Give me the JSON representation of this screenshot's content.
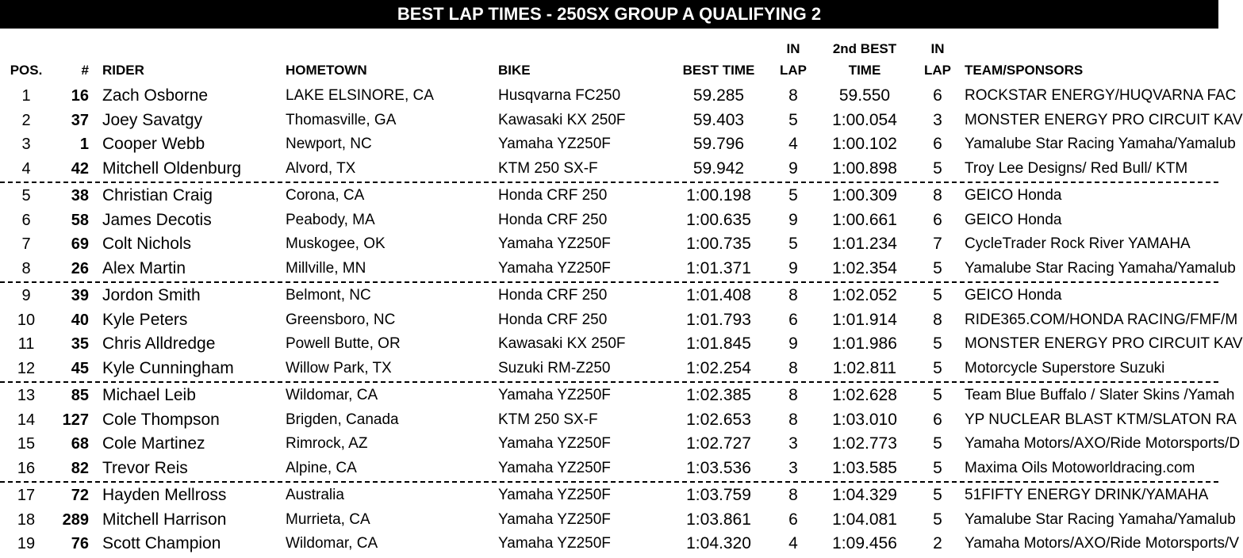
{
  "header": {
    "title": "BEST LAP TIMES - 250SX GROUP A QUALIFYING 2"
  },
  "table": {
    "columns": [
      "POS.",
      "#",
      "RIDER",
      "HOMETOWN",
      "BIKE",
      "BEST TIME",
      "IN LAP",
      "2nd BEST TIME",
      "IN LAP",
      "TEAM/SPONSORS"
    ],
    "rows": [
      [
        "1",
        "16",
        "Zach Osborne",
        "LAKE ELSINORE, CA",
        "Husqvarna FC250",
        "59.285",
        "8",
        "59.550",
        "6",
        "ROCKSTAR ENERGY/HUQVARNA FAC"
      ],
      [
        "2",
        "37",
        "Joey Savatgy",
        "Thomasville, GA",
        "Kawasaki KX 250F",
        "59.403",
        "5",
        "1:00.054",
        "3",
        "MONSTER ENERGY PRO CIRCUIT KAV"
      ],
      [
        "3",
        "1",
        "Cooper Webb",
        "Newport, NC",
        "Yamaha YZ250F",
        "59.796",
        "4",
        "1:00.102",
        "6",
        "Yamalube Star Racing Yamaha/Yamalub"
      ],
      [
        "4",
        "42",
        "Mitchell Oldenburg",
        "Alvord, TX",
        "KTM 250 SX-F",
        "59.942",
        "9",
        "1:00.898",
        "5",
        "Troy Lee Designs/ Red Bull/ KTM"
      ],
      [
        "5",
        "38",
        "Christian Craig",
        "Corona, CA",
        "Honda CRF 250",
        "1:00.198",
        "5",
        "1:00.309",
        "8",
        "GEICO Honda"
      ],
      [
        "6",
        "58",
        "James Decotis",
        "Peabody, MA",
        "Honda CRF 250",
        "1:00.635",
        "9",
        "1:00.661",
        "6",
        "GEICO Honda"
      ],
      [
        "7",
        "69",
        "Colt Nichols",
        "Muskogee, OK",
        "Yamaha YZ250F",
        "1:00.735",
        "5",
        "1:01.234",
        "7",
        "CycleTrader Rock River YAMAHA"
      ],
      [
        "8",
        "26",
        "Alex Martin",
        "Millville, MN",
        "Yamaha YZ250F",
        "1:01.371",
        "9",
        "1:02.354",
        "5",
        "Yamalube Star Racing Yamaha/Yamalub"
      ],
      [
        "9",
        "39",
        "Jordon Smith",
        "Belmont, NC",
        "Honda CRF 250",
        "1:01.408",
        "8",
        "1:02.052",
        "5",
        "GEICO Honda"
      ],
      [
        "10",
        "40",
        "Kyle Peters",
        "Greensboro, NC",
        "Honda CRF 250",
        "1:01.793",
        "6",
        "1:01.914",
        "8",
        "RIDE365.COM/HONDA RACING/FMF/M"
      ],
      [
        "11",
        "35",
        "Chris Alldredge",
        "Powell Butte, OR",
        "Kawasaki KX 250F",
        "1:01.845",
        "9",
        "1:01.986",
        "5",
        "MONSTER ENERGY PRO CIRCUIT KAV"
      ],
      [
        "12",
        "45",
        "Kyle Cunningham",
        "Willow Park, TX",
        "Suzuki RM-Z250",
        "1:02.254",
        "8",
        "1:02.811",
        "5",
        "Motorcycle Superstore Suzuki"
      ],
      [
        "13",
        "85",
        "Michael Leib",
        "Wildomar, CA",
        "Yamaha YZ250F",
        "1:02.385",
        "8",
        "1:02.628",
        "5",
        "Team Blue Buffalo / Slater Skins /Yamah"
      ],
      [
        "14",
        "127",
        "Cole Thompson",
        "Brigden, Canada",
        "KTM 250 SX-F",
        "1:02.653",
        "8",
        "1:03.010",
        "6",
        "YP NUCLEAR BLAST KTM/SLATON RA"
      ],
      [
        "15",
        "68",
        "Cole Martinez",
        "Rimrock, AZ",
        "Yamaha YZ250F",
        "1:02.727",
        "3",
        "1:02.773",
        "5",
        "Yamaha Motors/AXO/Ride Motorsports/D"
      ],
      [
        "16",
        "82",
        "Trevor Reis",
        "Alpine, CA",
        "Yamaha YZ250F",
        "1:03.536",
        "3",
        "1:03.585",
        "5",
        "Maxima Oils Motoworldracing.com"
      ],
      [
        "17",
        "72",
        "Hayden Mellross",
        "Australia",
        "Yamaha YZ250F",
        "1:03.759",
        "8",
        "1:04.329",
        "5",
        "51FIFTY ENERGY DRINK/YAMAHA"
      ],
      [
        "18",
        "289",
        "Mitchell Harrison",
        "Murrieta, CA",
        "Yamaha YZ250F",
        "1:03.861",
        "6",
        "1:04.081",
        "5",
        "Yamalube Star Racing Yamaha/Yamalub"
      ],
      [
        "19",
        "76",
        "Scott Champion",
        "Wildomar, CA",
        "Yamaha YZ250F",
        "1:04.320",
        "4",
        "1:09.456",
        "2",
        "Yamaha Motors/AXO/Ride Motorsports/V"
      ]
    ]
  }
}
